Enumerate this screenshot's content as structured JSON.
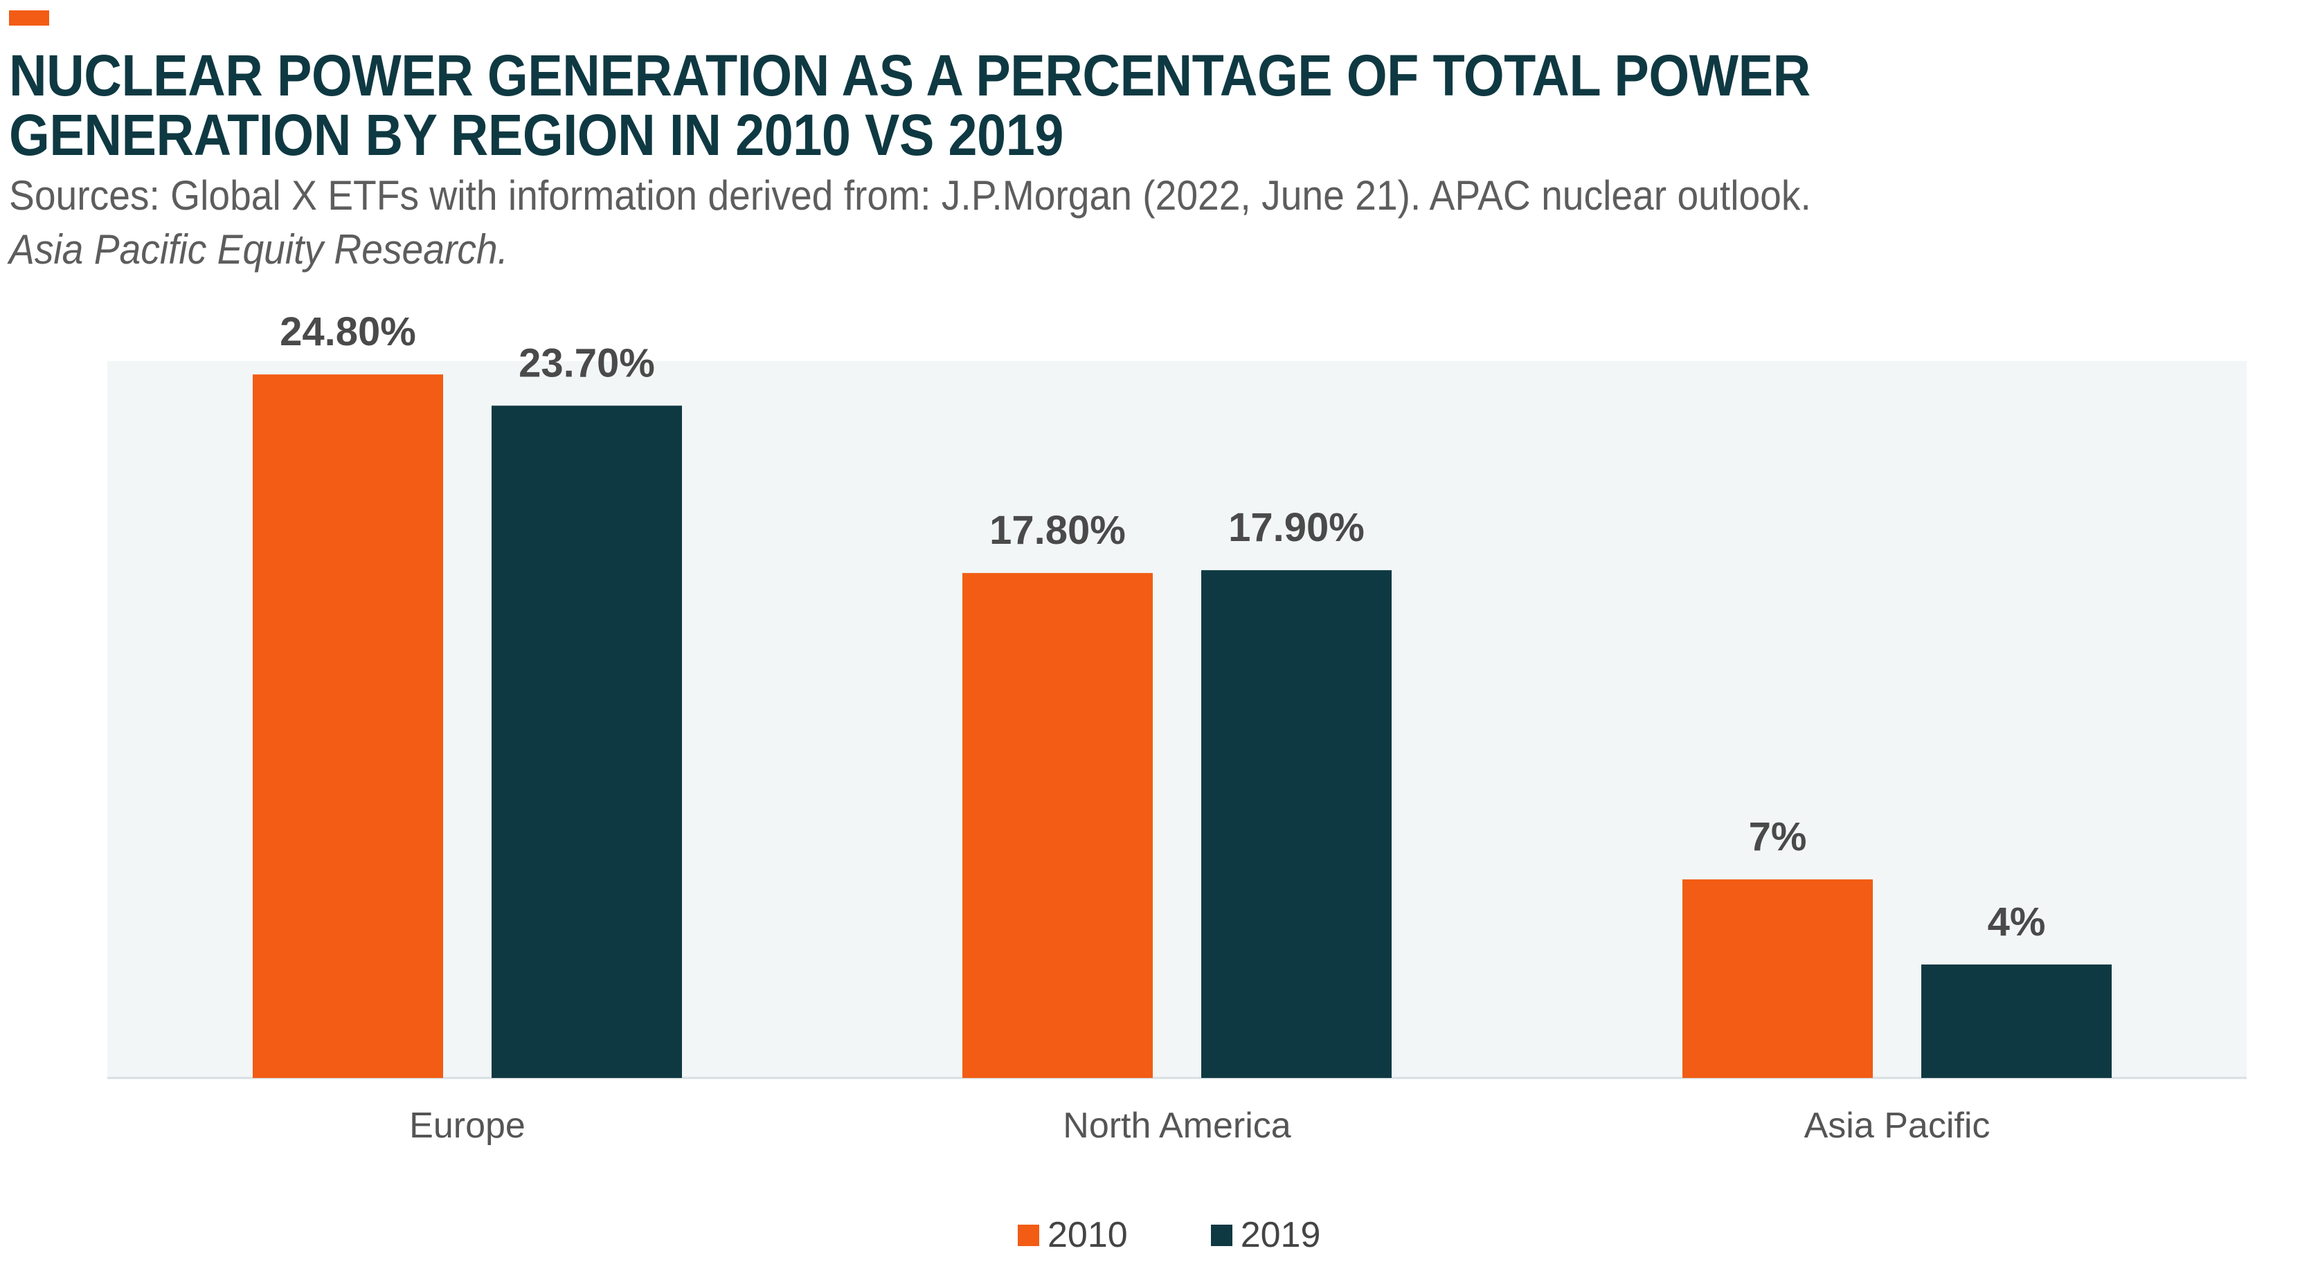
{
  "title": "NUCLEAR POWER GENERATION AS A PERCENTAGE OF TOTAL POWER GENERATION BY REGION IN 2010 VS 2019",
  "subtitle": {
    "line1": "Sources: Global X ETFs with information derived from: J.P.Morgan (2022, June 21). APAC nuclear outlook.",
    "line2": "Asia Pacific Equity Research."
  },
  "colors": {
    "accent": "#f25c14",
    "series_2010": "#f25c14",
    "series_2019": "#0f3942",
    "plot_background": "#f2f6f7",
    "title_text": "#0f3942",
    "label_text": "#4a4a4a"
  },
  "chart_data": {
    "type": "bar",
    "title": "NUCLEAR POWER GENERATION AS A PERCENTAGE OF TOTAL POWER GENERATION BY REGION IN 2010 VS 2019",
    "categories": [
      "Europe",
      "North America",
      "Asia Pacific"
    ],
    "series": [
      {
        "name": "2010",
        "values": [
          24.8,
          17.8,
          7
        ],
        "labels": [
          "24.80%",
          "17.80%",
          "7%"
        ]
      },
      {
        "name": "2019",
        "values": [
          23.7,
          17.9,
          4
        ],
        "labels": [
          "23.70%",
          "17.90%",
          "4%"
        ]
      }
    ],
    "xlabel": "",
    "ylabel": "",
    "ylim": [
      0,
      30
    ],
    "grid": false,
    "legend": "bottom-center"
  }
}
